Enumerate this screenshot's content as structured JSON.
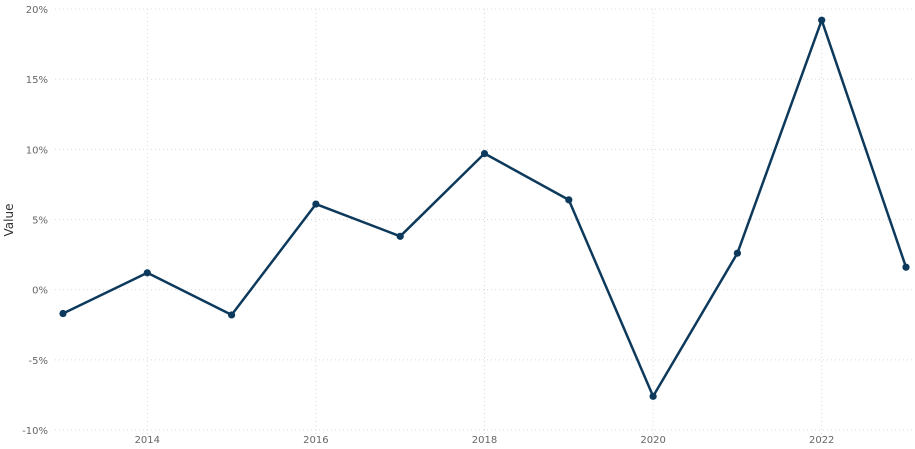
{
  "chart_data": {
    "type": "line",
    "title": "",
    "xlabel": "",
    "ylabel": "Value",
    "x": [
      2013,
      2014,
      2015,
      2016,
      2017,
      2018,
      2019,
      2020,
      2021,
      2022,
      2023
    ],
    "series": [
      {
        "values": [
          -1.7,
          1.2,
          -1.8,
          6.1,
          3.8,
          9.7,
          6.4,
          -7.6,
          2.6,
          19.2,
          1.6
        ]
      }
    ],
    "xlim": [
      2013,
      2023
    ],
    "ylim": [
      -10,
      20
    ],
    "x_ticks": [
      2014,
      2016,
      2018,
      2020,
      2022
    ],
    "y_ticks": [
      -10,
      -5,
      0,
      5,
      10,
      15,
      20
    ],
    "y_tick_suffix": "%",
    "grid": true,
    "legend": "none",
    "colors": {
      "series": "#0d3a5c",
      "grid": "#d9d9d9"
    }
  }
}
